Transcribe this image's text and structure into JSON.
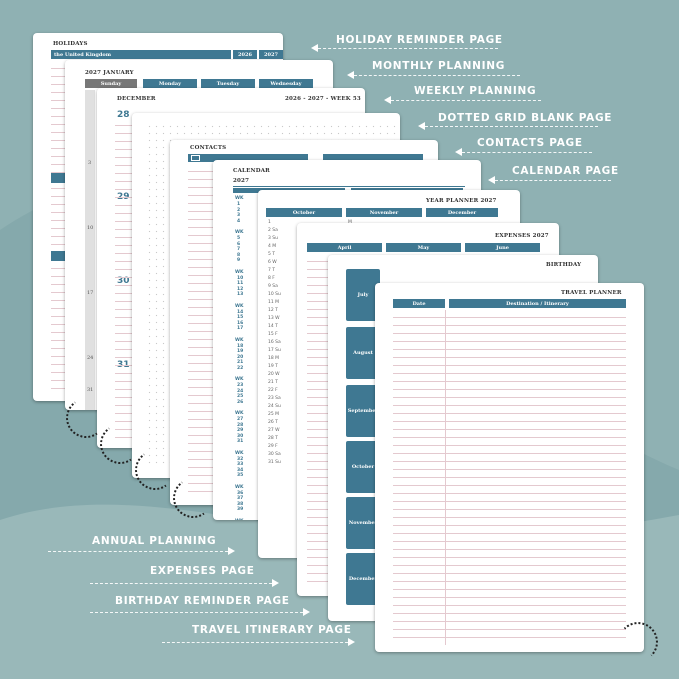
{
  "colors": {
    "background": "#8fb1b3",
    "accent": "#3f7892",
    "label_text": "#ffffff",
    "ruled_line": "#e4c9cf"
  },
  "labels_right": [
    "HOLIDAY REMINDER PAGE",
    "MONTHLY PLANNING",
    "WEEKLY PLANNING",
    "DOTTED GRID BLANK PAGE",
    "CONTACTS PAGE",
    "CALENDAR PAGE"
  ],
  "labels_left": [
    "ANNUAL PLANNING",
    "EXPENSES PAGE",
    "BIRTHDAY REMINDER PAGE",
    "TRAVEL ITINERARY PAGE"
  ],
  "holidays": {
    "title": "HOLIDAYS",
    "country": "the United Kingdom",
    "years": [
      "2026",
      "2027"
    ]
  },
  "monthly": {
    "title": "2027 JANUARY",
    "days": [
      "Sunday",
      "Monday",
      "Tuesday",
      "Wednesday"
    ],
    "dates": [
      "3",
      "10",
      "17",
      "24",
      "31"
    ]
  },
  "weekly": {
    "title": "DECEMBER",
    "week": "2026 - 2027 - WEEK 53",
    "dates": [
      "28",
      "29",
      "30",
      "31"
    ]
  },
  "contacts": {
    "title": "CONTACTS"
  },
  "calendar": {
    "title": "CALENDAR",
    "year": "2027",
    "wk": "WK",
    "weeks": [
      [
        "1",
        "2",
        "3",
        "4"
      ],
      [
        "5",
        "6",
        "7",
        "8",
        "9"
      ],
      [
        "10",
        "11",
        "12",
        "13"
      ],
      [
        "14",
        "15",
        "16",
        "17"
      ],
      [
        "18",
        "19",
        "20",
        "21",
        "22"
      ],
      [
        "23",
        "24",
        "25",
        "26"
      ],
      [
        "27",
        "28",
        "29",
        "30",
        "31"
      ],
      [
        "32",
        "33",
        "34",
        "35"
      ],
      [
        "36",
        "37",
        "38",
        "39"
      ],
      [
        "40",
        "41",
        "42",
        "43",
        "44"
      ],
      [
        "45",
        "46",
        "47",
        "48"
      ]
    ]
  },
  "year_planner": {
    "title": "YEAR PLANNER 2027",
    "months": [
      "October",
      "November",
      "December"
    ],
    "days": [
      "1",
      "2 Sa",
      "3 Su",
      "4 M",
      "5 T",
      "6 W",
      "7 T",
      "8 F",
      "9 Sa",
      "10 Su",
      "11 M",
      "12 T",
      "13 W",
      "14 T",
      "15 F",
      "16 Sa",
      "17 Su",
      "18 M",
      "19 T",
      "20 W",
      "21 T",
      "22 F",
      "23 Sa",
      "24 Su",
      "25 M",
      "26 T",
      "27 W",
      "28 T",
      "29 F",
      "30 Sa",
      "31 Su"
    ],
    "nov_days": [
      "M",
      "T",
      "W"
    ]
  },
  "expenses": {
    "title": "EXPENSES 2027",
    "months": [
      "April",
      "May",
      "June"
    ]
  },
  "birthday": {
    "title": "BIRTHDAY",
    "months": [
      "July",
      "August",
      "September",
      "October",
      "November",
      "December"
    ]
  },
  "travel": {
    "title": "TRAVEL PLANNER",
    "columns": [
      "Date",
      "Destination / Itinerary"
    ]
  }
}
